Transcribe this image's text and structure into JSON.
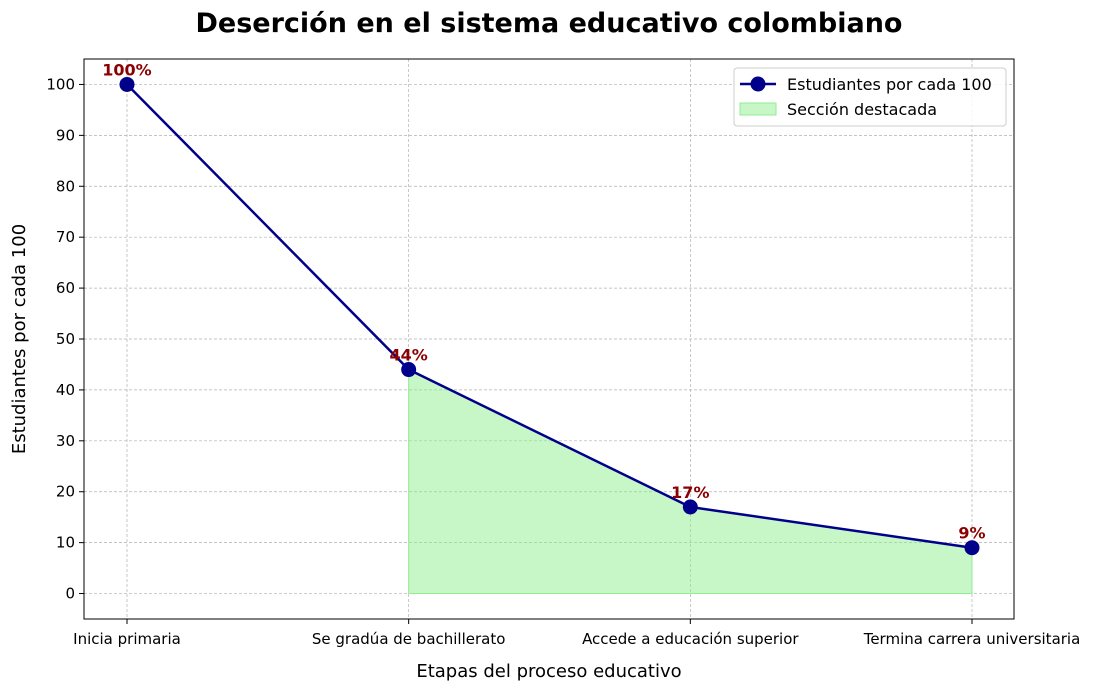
{
  "chart_data": {
    "type": "line",
    "title": "Deserción en el sistema educativo colombiano",
    "xlabel": "Etapas del proceso educativo",
    "ylabel": "Estudiantes por cada 100",
    "categories": [
      "Inicia primaria",
      "Se gradúa de bachillerato",
      "Accede a educación superior",
      "Termina carrera universitaria"
    ],
    "series": [
      {
        "name": "Estudiantes por cada 100",
        "values": [
          100,
          44,
          17,
          9
        ]
      }
    ],
    "data_labels": [
      "100%",
      "44%",
      "17%",
      "9%"
    ],
    "highlight": {
      "name": "Sección destacada",
      "from_index": 1,
      "to_index": 3
    },
    "ylim": [
      -5,
      105
    ],
    "yticks": [
      0,
      10,
      20,
      30,
      40,
      50,
      60,
      70,
      80,
      90,
      100
    ],
    "grid": true,
    "legend_position": "top-right",
    "colors": {
      "line": "#00008b",
      "fill": "#90ee90",
      "label": "#8b0000",
      "grid": "#b0b0b0"
    }
  }
}
